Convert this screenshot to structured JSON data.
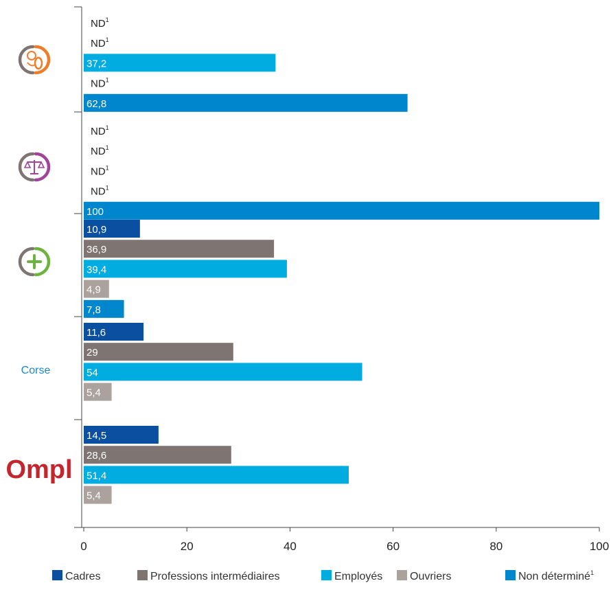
{
  "chart_data": {
    "type": "bar",
    "orientation": "horizontal",
    "xlim": [
      0,
      100
    ],
    "x_ticks": [
      "0",
      "20",
      "40",
      "60",
      "80",
      "100"
    ],
    "grid": false,
    "legend_position": "bottom",
    "categories": [
      {
        "label": "",
        "icon": "coins-hands-icon",
        "color": "#ee7d2b"
      },
      {
        "label": "",
        "icon": "justice-scales-icon",
        "color": "#a0459a"
      },
      {
        "label": "",
        "icon": "health-plus-icon",
        "color": "#6cb33f"
      },
      {
        "label": "Corse",
        "icon": "",
        "color": "#1e87c8"
      },
      {
        "label": "Ompl",
        "icon": "ompl-logo",
        "color": "#c1272d"
      }
    ],
    "series": [
      {
        "name": "Cadres",
        "color": "#0a4fa0",
        "values": [
          null,
          null,
          10.9,
          11.6,
          14.5
        ],
        "labels": [
          "ND",
          "ND",
          "10,9",
          "11,6",
          "14,5"
        ]
      },
      {
        "name": "Professions intermédiaires",
        "color": "#7e7472",
        "values": [
          null,
          null,
          36.9,
          29,
          28.6
        ],
        "labels": [
          "ND",
          "ND",
          "36,9",
          "29",
          "28,6"
        ]
      },
      {
        "name": "Employés",
        "color": "#00ace0",
        "values": [
          37.2,
          null,
          39.4,
          54,
          51.4
        ],
        "labels": [
          "37,2",
          "ND",
          "39,4",
          "54",
          "51,4"
        ]
      },
      {
        "name": "Ouvriers",
        "color": "#aba19d",
        "values": [
          null,
          null,
          4.9,
          5.4,
          5.4
        ],
        "labels": [
          "ND",
          "ND",
          "4,9",
          "5,4",
          "5,4"
        ]
      },
      {
        "name": "Non déterminé",
        "color": "#0086cd",
        "values": [
          62.8,
          100,
          7.8,
          null,
          null
        ],
        "labels": [
          "62,8",
          "100",
          "7,8",
          "",
          ""
        ]
      }
    ],
    "footnote_marker": "1",
    "legend_footnote_series": "Non déterminé"
  }
}
